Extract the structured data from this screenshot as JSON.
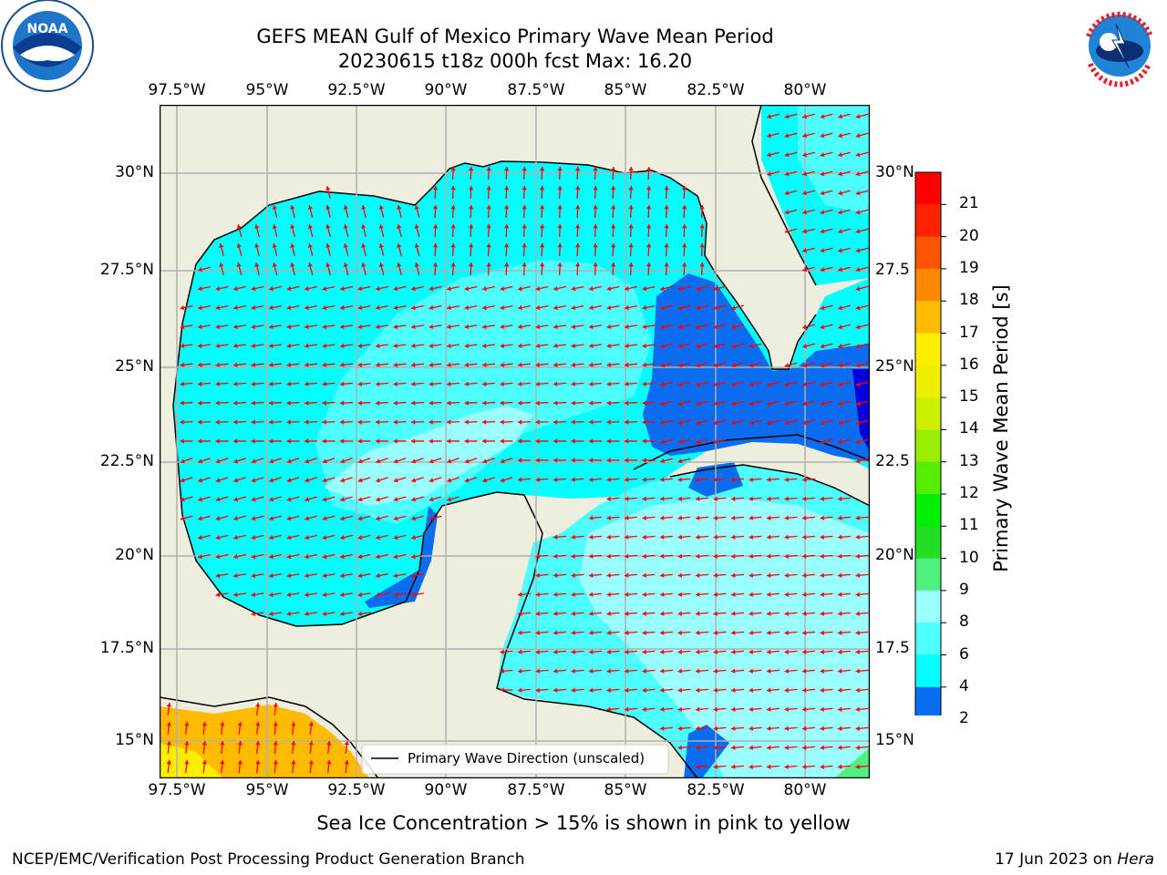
{
  "title": {
    "line1": "GEFS MEAN Gulf of Mexico Primary Wave Mean Period",
    "line2": "20230615 t18z 000h fcst   Max: 16.20"
  },
  "axes": {
    "lon_labels": [
      "97.5°W",
      "95°W",
      "92.5°W",
      "90°W",
      "87.5°W",
      "85°W",
      "82.5°W",
      "80°W"
    ],
    "lat_labels_left": [
      "30°N",
      "27.5°N",
      "25°N",
      "22.5°N",
      "20°N",
      "17.5°N",
      "15°N"
    ],
    "lat_labels_right": [
      "30°N",
      "27.5",
      "25°N",
      "22.5",
      "20°N",
      "17.5",
      "15°N"
    ]
  },
  "legend": {
    "label": "Primary Wave Direction (unscaled)"
  },
  "colorbar": {
    "label": "Primary Wave Mean Period [s]",
    "ticks": [
      "2",
      "4",
      "6",
      "8",
      "9",
      "10",
      "11",
      "12",
      "13",
      "14",
      "15",
      "16",
      "17",
      "18",
      "19",
      "20",
      "21"
    ],
    "colors": [
      "#0000dd",
      "#0a6df0",
      "#00ffff",
      "#4dffff",
      "#99ffff",
      "#4ff07f",
      "#22dd22",
      "#00ee00",
      "#55ee00",
      "#99ee00",
      "#ccf000",
      "#eeee00",
      "#ffee00",
      "#ffbb00",
      "#ff8800",
      "#ff5500",
      "#ff2200",
      "#ff0000"
    ],
    "arrow_color": "#0000ee"
  },
  "colors": {
    "land": "#efedde",
    "arrows": "#ff0000",
    "grid": "#b0b0b0"
  },
  "footer": {
    "sea_ice_note": "Sea Ice Concentration > 15% is shown in pink to yellow",
    "credit_left": "NCEP/EMC/Verification Post Processing Product Generation Branch",
    "credit_right_prefix": "17 Jun 2023 on ",
    "credit_right_host": "Hera"
  },
  "logos": {
    "noaa_text": "NOAA",
    "nws_text": "NATIONAL WEATHER SERVICE"
  }
}
